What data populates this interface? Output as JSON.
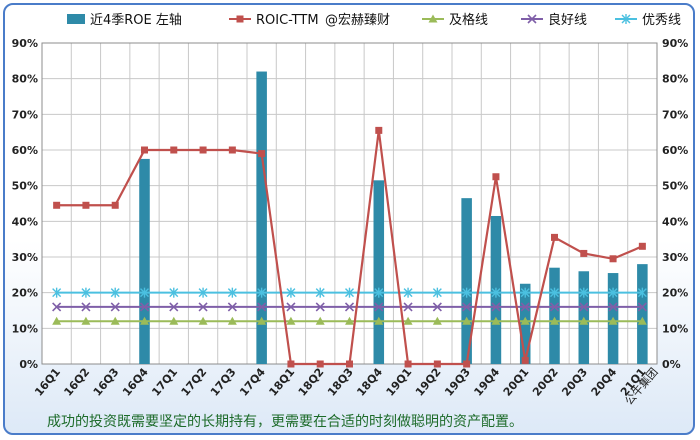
{
  "chart_data": {
    "type": "bar",
    "categories": [
      "16Q1",
      "16Q2",
      "16Q3",
      "16Q4",
      "17Q1",
      "17Q2",
      "17Q3",
      "17Q4",
      "18Q1",
      "18Q2",
      "18Q3",
      "18Q4",
      "19Q1",
      "19Q2",
      "19Q3",
      "19Q4",
      "20Q1",
      "20Q2",
      "20Q3",
      "20Q4",
      "21Q1"
    ],
    "series": [
      {
        "name": "近4季ROE 左轴",
        "kind": "bar",
        "color": "#2e8aa8",
        "values": [
          null,
          null,
          null,
          57.5,
          null,
          null,
          null,
          82,
          null,
          null,
          null,
          51.5,
          null,
          null,
          46.5,
          41.5,
          22.5,
          27,
          26,
          25.5,
          28
        ]
      },
      {
        "name": "ROIC-TTM",
        "kind": "line",
        "marker": "square",
        "color": "#c0504d",
        "values": [
          44.5,
          44.5,
          44.5,
          60,
          60,
          60,
          60,
          59,
          0,
          0,
          0,
          65.5,
          0,
          0,
          0,
          52.5,
          1,
          35.5,
          31,
          29.5,
          33
        ]
      },
      {
        "name": "@宏赫臻财",
        "kind": "legend-text"
      },
      {
        "name": "及格线",
        "kind": "line",
        "marker": "triangle",
        "color": "#9bbb59",
        "values": [
          12,
          12,
          12,
          12,
          12,
          12,
          12,
          12,
          12,
          12,
          12,
          12,
          12,
          12,
          12,
          12,
          12,
          12,
          12,
          12,
          12
        ]
      },
      {
        "name": "良好线",
        "kind": "line",
        "marker": "x",
        "color": "#7f5fa8",
        "values": [
          16,
          16,
          16,
          16,
          16,
          16,
          16,
          16,
          16,
          16,
          16,
          16,
          16,
          16,
          16,
          16,
          16,
          16,
          16,
          16,
          16
        ]
      },
      {
        "name": "优秀线",
        "kind": "line",
        "marker": "star",
        "color": "#4bc0e0",
        "values": [
          20,
          20,
          20,
          20,
          20,
          20,
          20,
          20,
          20,
          20,
          20,
          20,
          20,
          20,
          20,
          20,
          20,
          20,
          20,
          20,
          20
        ]
      }
    ],
    "left_axis": {
      "ticks": [
        "0%",
        "10%",
        "20%",
        "30%",
        "40%",
        "50%",
        "60%",
        "70%",
        "80%",
        "90%"
      ],
      "ylim": [
        0,
        90
      ]
    },
    "right_axis": {
      "ticks": [
        "0%",
        "10%",
        "20%",
        "30%",
        "40%",
        "50%",
        "60%",
        "70%",
        "80%",
        "90%"
      ],
      "ylim": [
        0,
        90
      ]
    },
    "extra_x_label": "公牛集团",
    "grid": true,
    "legend_position": "top"
  },
  "caption": "成功的投资既需要坚定的长期持有，更需要在合适的时刻做聪明的资产配置。"
}
